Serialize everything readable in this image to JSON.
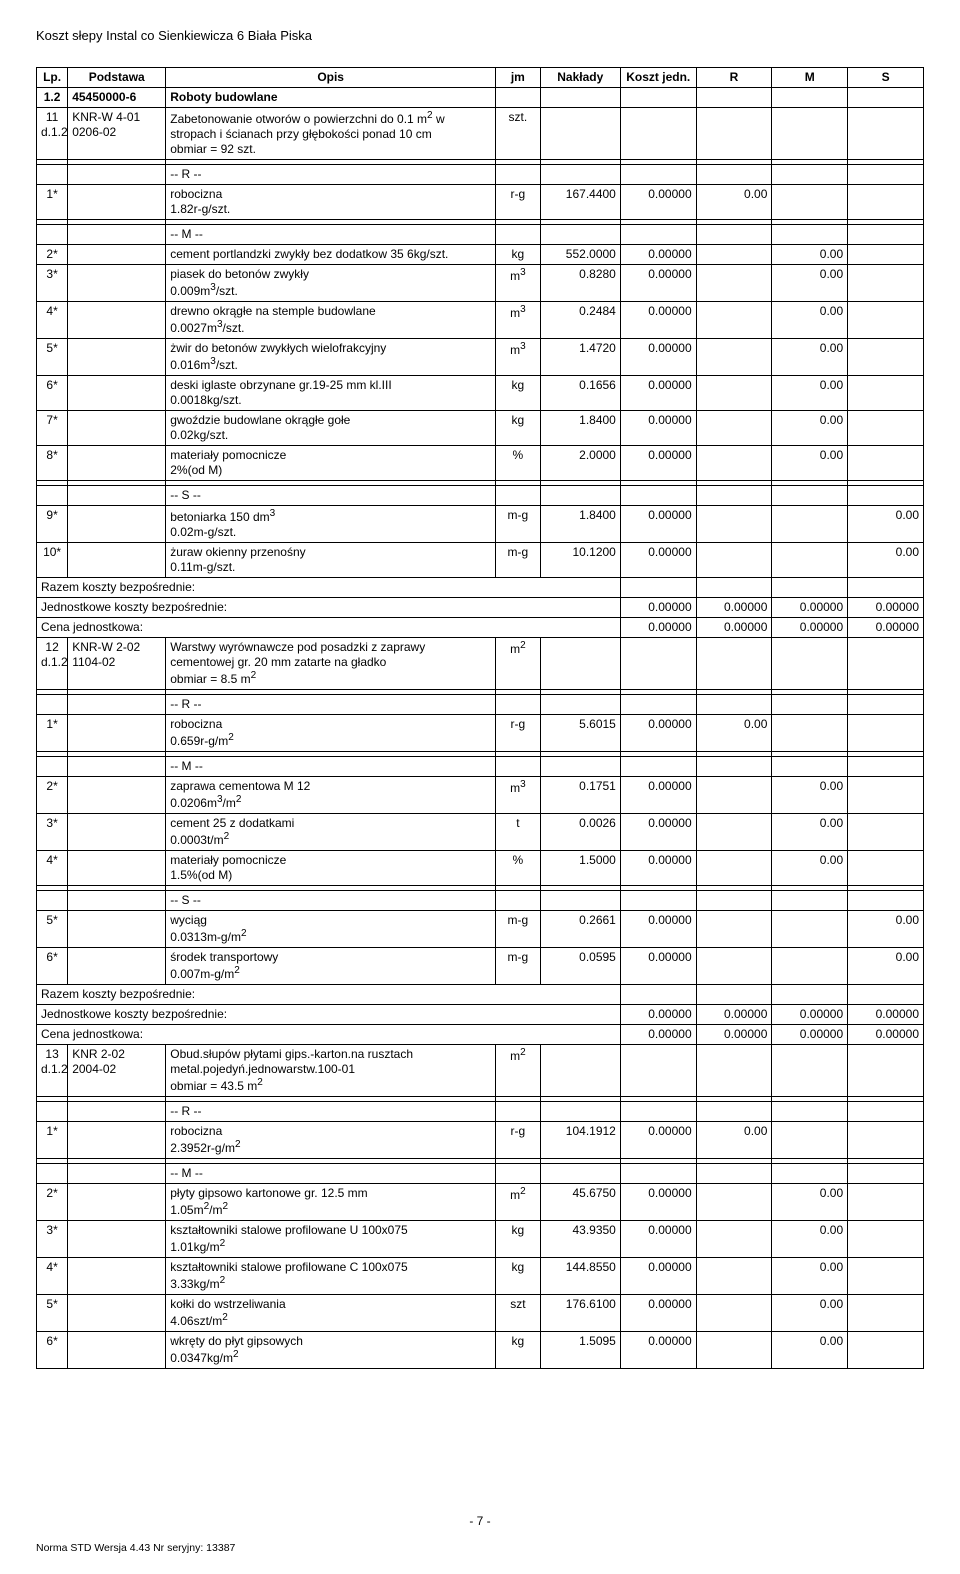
{
  "doc_header": "Koszt słepy Instal co Sienkiewicza 6 Biała Piska",
  "columns": {
    "lp": "Lp.",
    "podstawa": "Podstawa",
    "opis": "Opis",
    "jm": "jm",
    "naklady": "Nakłady",
    "koszt_jedn": "Koszt jedn.",
    "r": "R",
    "m": "M",
    "s": "S"
  },
  "section": {
    "lp": "1.2",
    "podstawa": "45450000-6",
    "opis": "Roboty budowlane"
  },
  "item11": {
    "lp": "11\nd.1.2",
    "podstawa": "KNR-W 4-01\n0206-02",
    "opis": "Zabetonowanie otworów o powierzchni do 0.1 m2 w stropach i ścianach przy głębokości ponad 10 cm\nobmiar  = 92 szt.",
    "jm": "szt."
  },
  "r_label": "-- R --",
  "m_label": "-- M --",
  "s_label": "-- S --",
  "r11_1": {
    "lp": "1*",
    "opis": "robocizna\n1.82r-g/szt.",
    "jm": "r-g",
    "nak": "167.4400",
    "kj": "0.00000",
    "r": "0.00"
  },
  "m11": [
    {
      "lp": "2*",
      "opis": "cement portlandzki zwykły bez dodatkow 35 6kg/szt.",
      "jm": "kg",
      "nak": "552.0000",
      "kj": "0.00000",
      "m": "0.00"
    },
    {
      "lp": "3*",
      "opis": "piasek do betonów zwykły\n0.009m3/szt.",
      "jm": "m3",
      "nak": "0.8280",
      "kj": "0.00000",
      "m": "0.00"
    },
    {
      "lp": "4*",
      "opis": "drewno okrągłe na stemple budowlane\n0.0027m3/szt.",
      "jm": "m3",
      "nak": "0.2484",
      "kj": "0.00000",
      "m": "0.00"
    },
    {
      "lp": "5*",
      "opis": "żwir do betonów zwykłych wielofrakcyjny\n0.016m3/szt.",
      "jm": "m3",
      "nak": "1.4720",
      "kj": "0.00000",
      "m": "0.00"
    },
    {
      "lp": "6*",
      "opis": "deski iglaste obrzynane gr.19-25 mm kl.III\n0.0018kg/szt.",
      "jm": "kg",
      "nak": "0.1656",
      "kj": "0.00000",
      "m": "0.00"
    },
    {
      "lp": "7*",
      "opis": "gwoździe budowlane okrągłe gołe\n0.02kg/szt.",
      "jm": "kg",
      "nak": "1.8400",
      "kj": "0.00000",
      "m": "0.00"
    },
    {
      "lp": "8*",
      "opis": "materiały pomocnicze\n2%(od M)",
      "jm": "%",
      "nak": "2.0000",
      "kj": "0.00000",
      "m": "0.00"
    }
  ],
  "s11": [
    {
      "lp": "9*",
      "opis": "betoniarka 150 dm3\n0.02m-g/szt.",
      "jm": "m-g",
      "nak": "1.8400",
      "kj": "0.00000",
      "s": "0.00"
    },
    {
      "lp": "10*",
      "opis": "żuraw okienny przenośny\n0.11m-g/szt.",
      "jm": "m-g",
      "nak": "10.1200",
      "kj": "0.00000",
      "s": "0.00"
    }
  ],
  "totals": {
    "rkb": "Razem koszty bezpośrednie:",
    "jkb": "Jednostkowe koszty bezpośrednie:",
    "cj": "Cena jednostkowa:",
    "z": "0.00000"
  },
  "item12": {
    "lp": "12\nd.1.2",
    "podstawa": "KNR-W 2-02\n1104-02",
    "opis": "Warstwy wyrównawcze pod posadzki z zaprawy cementowej gr. 20 mm zatarte na gładko\nobmiar  = 8.5 m2",
    "jm": "m2"
  },
  "r12_1": {
    "lp": "1*",
    "opis": "robocizna\n0.659r-g/m2",
    "jm": "r-g",
    "nak": "5.6015",
    "kj": "0.00000",
    "r": "0.00"
  },
  "m12": [
    {
      "lp": "2*",
      "opis": "zaprawa cementowa M 12\n0.0206m3/m2",
      "jm": "m3",
      "nak": "0.1751",
      "kj": "0.00000",
      "m": "0.00"
    },
    {
      "lp": "3*",
      "opis": "cement 25 z dodatkami\n0.0003t/m2",
      "jm": "t",
      "nak": "0.0026",
      "kj": "0.00000",
      "m": "0.00"
    },
    {
      "lp": "4*",
      "opis": "materiały pomocnicze\n1.5%(od M)",
      "jm": "%",
      "nak": "1.5000",
      "kj": "0.00000",
      "m": "0.00"
    }
  ],
  "s12": [
    {
      "lp": "5*",
      "opis": "wyciąg\n0.0313m-g/m2",
      "jm": "m-g",
      "nak": "0.2661",
      "kj": "0.00000",
      "s": "0.00"
    },
    {
      "lp": "6*",
      "opis": "środek transportowy\n0.007m-g/m2",
      "jm": "m-g",
      "nak": "0.0595",
      "kj": "0.00000",
      "s": "0.00"
    }
  ],
  "item13": {
    "lp": "13\nd.1.2",
    "podstawa": "KNR 2-02\n2004-02",
    "opis": "Obud.słupów płytami gips.-karton.na rusztach metal.pojedyń.jednowarstw.100-01\nobmiar  = 43.5 m2",
    "jm": "m2"
  },
  "r13_1": {
    "lp": "1*",
    "opis": "robocizna\n2.3952r-g/m2",
    "jm": "r-g",
    "nak": "104.1912",
    "kj": "0.00000",
    "r": "0.00"
  },
  "m13": [
    {
      "lp": "2*",
      "opis": "płyty gipsowo kartonowe gr. 12.5 mm\n1.05m2/m2",
      "jm": "m2",
      "nak": "45.6750",
      "kj": "0.00000",
      "m": "0.00"
    },
    {
      "lp": "3*",
      "opis": "kształtowniki stalowe profilowane U 100x075\n1.01kg/m2",
      "jm": "kg",
      "nak": "43.9350",
      "kj": "0.00000",
      "m": "0.00"
    },
    {
      "lp": "4*",
      "opis": "kształtowniki stalowe profilowane C 100x075\n3.33kg/m2",
      "jm": "kg",
      "nak": "144.8550",
      "kj": "0.00000",
      "m": "0.00"
    },
    {
      "lp": "5*",
      "opis": "kołki do wstrzeliwania\n4.06szt/m2",
      "jm": "szt",
      "nak": "176.6100",
      "kj": "0.00000",
      "m": "0.00"
    },
    {
      "lp": "6*",
      "opis": "wkręty do płyt gipsowych\n0.0347kg/m2",
      "jm": "kg",
      "nak": "1.5095",
      "kj": "0.00000",
      "m": "0.00"
    }
  ],
  "page_number": "- 7 -",
  "footer_left": "Norma STD Wersja 4.43 Nr seryjny: 13387"
}
